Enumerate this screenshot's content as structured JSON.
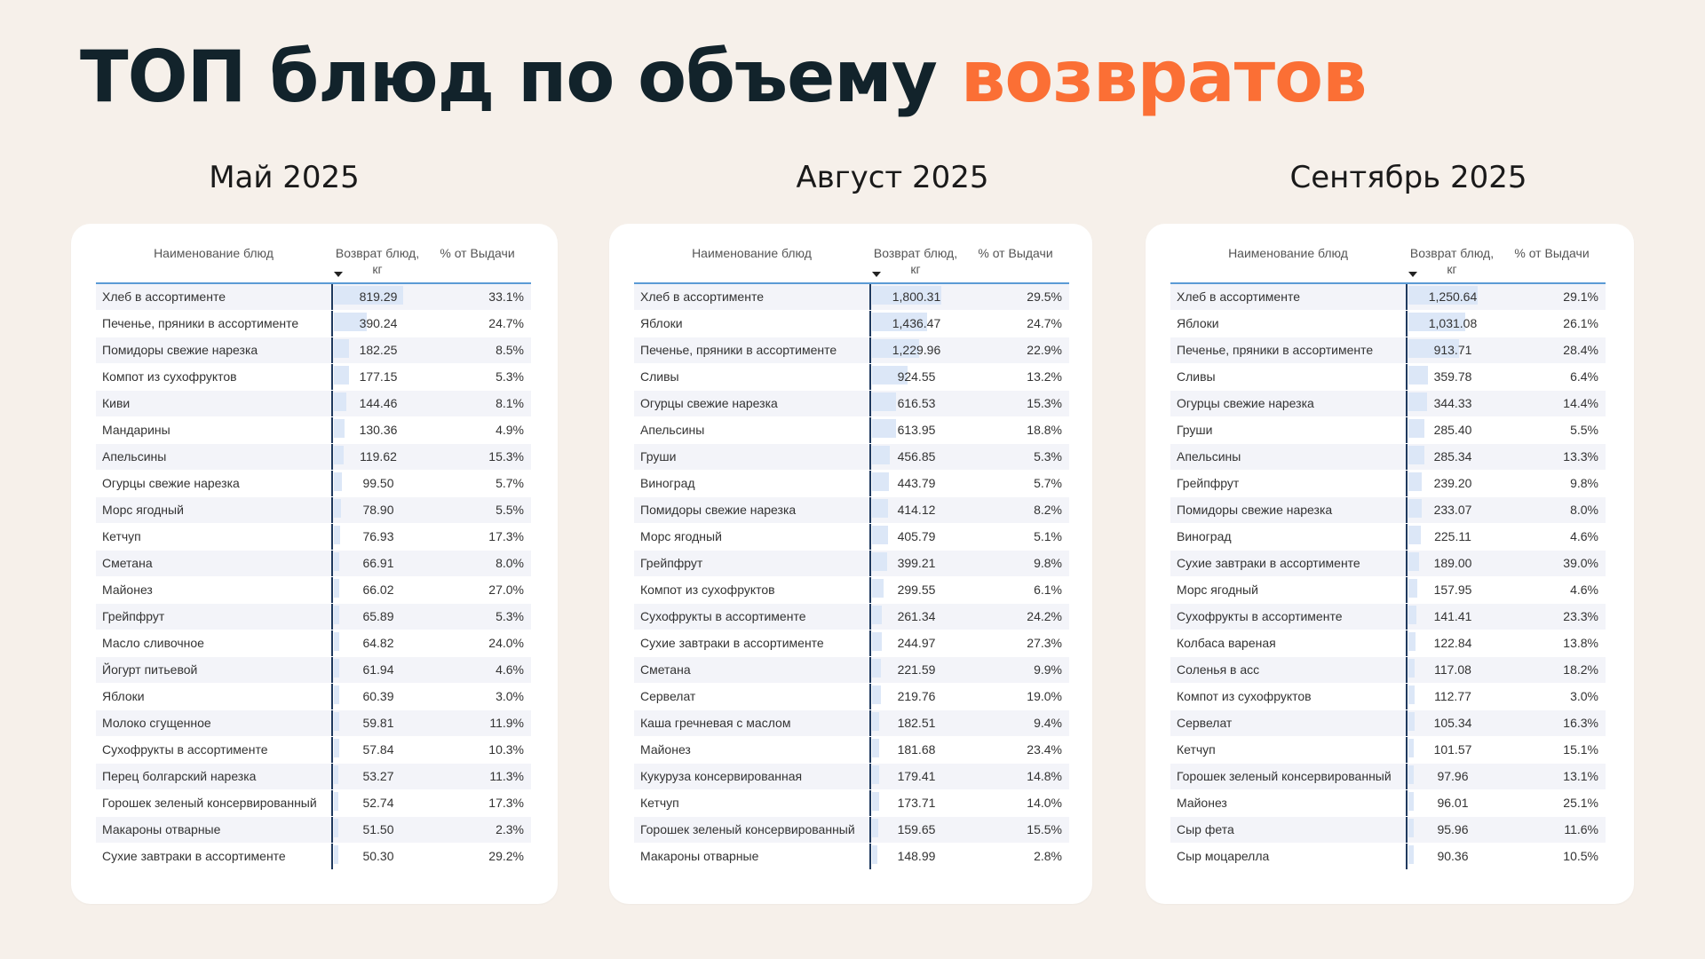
{
  "title": {
    "main": "ТОП блюд по объему",
    "accent": "возвратов"
  },
  "headers": {
    "name": "Наименование блюд",
    "value": "Возврат блюд, кг",
    "percent": "% от Выдачи"
  },
  "chart_data": [
    {
      "type": "table",
      "title": "Май 2025",
      "columns": [
        "Наименование блюд",
        "Возврат блюд, кг",
        "% от Выдачи"
      ],
      "rows": [
        {
          "name": "Хлеб в ассортименте",
          "value": "819.29",
          "num": 819.29,
          "pct": "33.1%"
        },
        {
          "name": "Печенье, пряники в ассортименте",
          "value": "390.24",
          "num": 390.24,
          "pct": "24.7%"
        },
        {
          "name": "Помидоры свежие нарезка",
          "value": "182.25",
          "num": 182.25,
          "pct": "8.5%"
        },
        {
          "name": "Компот из сухофруктов",
          "value": "177.15",
          "num": 177.15,
          "pct": "5.3%"
        },
        {
          "name": "Киви",
          "value": "144.46",
          "num": 144.46,
          "pct": "8.1%"
        },
        {
          "name": "Мандарины",
          "value": "130.36",
          "num": 130.36,
          "pct": "4.9%"
        },
        {
          "name": "Апельсины",
          "value": "119.62",
          "num": 119.62,
          "pct": "15.3%"
        },
        {
          "name": "Огурцы свежие нарезка",
          "value": "99.50",
          "num": 99.5,
          "pct": "5.7%"
        },
        {
          "name": "Морс ягодный",
          "value": "78.90",
          "num": 78.9,
          "pct": "5.5%"
        },
        {
          "name": "Кетчуп",
          "value": "76.93",
          "num": 76.93,
          "pct": "17.3%"
        },
        {
          "name": "Сметана",
          "value": "66.91",
          "num": 66.91,
          "pct": "8.0%"
        },
        {
          "name": "Майонез",
          "value": "66.02",
          "num": 66.02,
          "pct": "27.0%"
        },
        {
          "name": "Грейпфрут",
          "value": "65.89",
          "num": 65.89,
          "pct": "5.3%"
        },
        {
          "name": "Масло сливочное",
          "value": "64.82",
          "num": 64.82,
          "pct": "24.0%"
        },
        {
          "name": "Йогурт питьевой",
          "value": "61.94",
          "num": 61.94,
          "pct": "4.6%"
        },
        {
          "name": "Яблоки",
          "value": "60.39",
          "num": 60.39,
          "pct": "3.0%"
        },
        {
          "name": "Молоко сгущенное",
          "value": "59.81",
          "num": 59.81,
          "pct": "11.9%"
        },
        {
          "name": "Сухофрукты в ассортименте",
          "value": "57.84",
          "num": 57.84,
          "pct": "10.3%"
        },
        {
          "name": "Перец болгарский нарезка",
          "value": "53.27",
          "num": 53.27,
          "pct": "11.3%"
        },
        {
          "name": "Горошек зеленый консервированный",
          "value": "52.74",
          "num": 52.74,
          "pct": "17.3%"
        },
        {
          "name": "Макароны отварные",
          "value": "51.50",
          "num": 51.5,
          "pct": "2.3%"
        },
        {
          "name": "Сухие завтраки в ассортименте",
          "value": "50.30",
          "num": 50.3,
          "pct": "29.2%"
        }
      ]
    },
    {
      "type": "table",
      "title": "Август 2025",
      "columns": [
        "Наименование блюд",
        "Возврат блюд, кг",
        "% от Выдачи"
      ],
      "rows": [
        {
          "name": "Хлеб в ассортименте",
          "value": "1,800.31",
          "num": 1800.31,
          "pct": "29.5%"
        },
        {
          "name": "Яблоки",
          "value": "1,436.47",
          "num": 1436.47,
          "pct": "24.7%"
        },
        {
          "name": "Печенье, пряники в ассортименте",
          "value": "1,229.96",
          "num": 1229.96,
          "pct": "22.9%"
        },
        {
          "name": "Сливы",
          "value": "924.55",
          "num": 924.55,
          "pct": "13.2%"
        },
        {
          "name": "Огурцы свежие нарезка",
          "value": "616.53",
          "num": 616.53,
          "pct": "15.3%"
        },
        {
          "name": "Апельсины",
          "value": "613.95",
          "num": 613.95,
          "pct": "18.8%"
        },
        {
          "name": "Груши",
          "value": "456.85",
          "num": 456.85,
          "pct": "5.3%"
        },
        {
          "name": "Виноград",
          "value": "443.79",
          "num": 443.79,
          "pct": "5.7%"
        },
        {
          "name": "Помидоры свежие нарезка",
          "value": "414.12",
          "num": 414.12,
          "pct": "8.2%"
        },
        {
          "name": "Морс ягодный",
          "value": "405.79",
          "num": 405.79,
          "pct": "5.1%"
        },
        {
          "name": "Грейпфрут",
          "value": "399.21",
          "num": 399.21,
          "pct": "9.8%"
        },
        {
          "name": "Компот из сухофруктов",
          "value": "299.55",
          "num": 299.55,
          "pct": "6.1%"
        },
        {
          "name": "Сухофрукты в ассортименте",
          "value": "261.34",
          "num": 261.34,
          "pct": "24.2%"
        },
        {
          "name": "Сухие завтраки в ассортименте",
          "value": "244.97",
          "num": 244.97,
          "pct": "27.3%"
        },
        {
          "name": "Сметана",
          "value": "221.59",
          "num": 221.59,
          "pct": "9.9%"
        },
        {
          "name": "Сервелат",
          "value": "219.76",
          "num": 219.76,
          "pct": "19.0%"
        },
        {
          "name": "Каша гречневая с маслом",
          "value": "182.51",
          "num": 182.51,
          "pct": "9.4%"
        },
        {
          "name": "Майонез",
          "value": "181.68",
          "num": 181.68,
          "pct": "23.4%"
        },
        {
          "name": "Кукуруза консервированная",
          "value": "179.41",
          "num": 179.41,
          "pct": "14.8%"
        },
        {
          "name": "Кетчуп",
          "value": "173.71",
          "num": 173.71,
          "pct": "14.0%"
        },
        {
          "name": "Горошек зеленый консервированный",
          "value": "159.65",
          "num": 159.65,
          "pct": "15.5%"
        },
        {
          "name": "Макароны отварные",
          "value": "148.99",
          "num": 148.99,
          "pct": "2.8%"
        }
      ]
    },
    {
      "type": "table",
      "title": "Сентябрь 2025",
      "columns": [
        "Наименование блюд",
        "Возврат блюд, кг",
        "% от Выдачи"
      ],
      "rows": [
        {
          "name": "Хлеб в ассортименте",
          "value": "1,250.64",
          "num": 1250.64,
          "pct": "29.1%"
        },
        {
          "name": "Яблоки",
          "value": "1,031.08",
          "num": 1031.08,
          "pct": "26.1%"
        },
        {
          "name": "Печенье, пряники в ассортименте",
          "value": "913.71",
          "num": 913.71,
          "pct": "28.4%"
        },
        {
          "name": "Сливы",
          "value": "359.78",
          "num": 359.78,
          "pct": "6.4%"
        },
        {
          "name": "Огурцы свежие нарезка",
          "value": "344.33",
          "num": 344.33,
          "pct": "14.4%"
        },
        {
          "name": "Груши",
          "value": "285.40",
          "num": 285.4,
          "pct": "5.5%"
        },
        {
          "name": "Апельсины",
          "value": "285.34",
          "num": 285.34,
          "pct": "13.3%"
        },
        {
          "name": "Грейпфрут",
          "value": "239.20",
          "num": 239.2,
          "pct": "9.8%"
        },
        {
          "name": "Помидоры свежие нарезка",
          "value": "233.07",
          "num": 233.07,
          "pct": "8.0%"
        },
        {
          "name": "Виноград",
          "value": "225.11",
          "num": 225.11,
          "pct": "4.6%"
        },
        {
          "name": "Сухие завтраки в ассортименте",
          "value": "189.00",
          "num": 189.0,
          "pct": "39.0%"
        },
        {
          "name": "Морс ягодный",
          "value": "157.95",
          "num": 157.95,
          "pct": "4.6%"
        },
        {
          "name": "Сухофрукты в ассортименте",
          "value": "141.41",
          "num": 141.41,
          "pct": "23.3%"
        },
        {
          "name": "Колбаса вареная",
          "value": "122.84",
          "num": 122.84,
          "pct": "13.8%"
        },
        {
          "name": "Соленья в асс",
          "value": "117.08",
          "num": 117.08,
          "pct": "18.2%"
        },
        {
          "name": "Компот из сухофруктов",
          "value": "112.77",
          "num": 112.77,
          "pct": "3.0%"
        },
        {
          "name": "Сервелат",
          "value": "105.34",
          "num": 105.34,
          "pct": "16.3%"
        },
        {
          "name": "Кетчуп",
          "value": "101.57",
          "num": 101.57,
          "pct": "15.1%"
        },
        {
          "name": "Горошек зеленый консервированный",
          "value": "97.96",
          "num": 97.96,
          "pct": "13.1%"
        },
        {
          "name": "Майонез",
          "value": "96.01",
          "num": 96.01,
          "pct": "25.1%"
        },
        {
          "name": "Сыр фета",
          "value": "95.96",
          "num": 95.96,
          "pct": "11.6%"
        },
        {
          "name": "Сыр моцарелла",
          "value": "90.36",
          "num": 90.36,
          "pct": "10.5%"
        }
      ]
    }
  ]
}
